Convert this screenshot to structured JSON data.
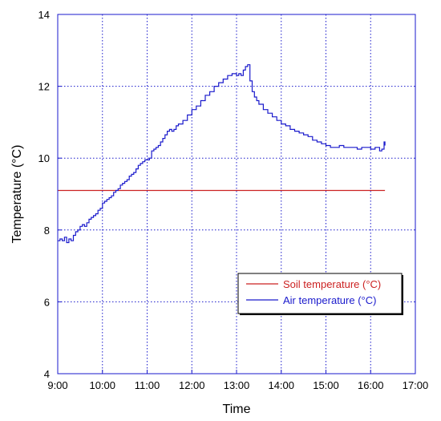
{
  "chart_data": {
    "type": "line",
    "title": "",
    "xlabel": "Time",
    "ylabel": "Temperature (°C)",
    "xlim": [
      9,
      17
    ],
    "ylim": [
      4,
      14
    ],
    "x_ticks": [
      {
        "value": 9,
        "label": "9:00"
      },
      {
        "value": 10,
        "label": "10:00"
      },
      {
        "value": 11,
        "label": "11:00"
      },
      {
        "value": 12,
        "label": "12:00"
      },
      {
        "value": 13,
        "label": "13:00"
      },
      {
        "value": 14,
        "label": "14:00"
      },
      {
        "value": 15,
        "label": "15:00"
      },
      {
        "value": 16,
        "label": "16:00"
      },
      {
        "value": 17,
        "label": "17:00"
      }
    ],
    "y_ticks": [
      {
        "value": 4,
        "label": "4"
      },
      {
        "value": 6,
        "label": "6"
      },
      {
        "value": 8,
        "label": "8"
      },
      {
        "value": 10,
        "label": "10"
      },
      {
        "value": 12,
        "label": "12"
      },
      {
        "value": 14,
        "label": "14"
      }
    ],
    "grid": true,
    "legend_position": "bottom-right",
    "series": [
      {
        "name": "Soil temperature (°C)",
        "color": "#cc2222",
        "x": [
          9.0,
          16.32
        ],
        "y": [
          9.1,
          9.1
        ]
      },
      {
        "name": "Air temperature (°C)",
        "color": "#1a1acc",
        "x": [
          9.0,
          9.05,
          9.1,
          9.15,
          9.2,
          9.25,
          9.3,
          9.35,
          9.4,
          9.45,
          9.5,
          9.55,
          9.6,
          9.65,
          9.7,
          9.75,
          9.8,
          9.85,
          9.9,
          9.95,
          10.0,
          10.05,
          10.1,
          10.15,
          10.2,
          10.25,
          10.3,
          10.35,
          10.4,
          10.45,
          10.5,
          10.55,
          10.6,
          10.65,
          10.7,
          10.75,
          10.8,
          10.85,
          10.9,
          10.95,
          11.0,
          11.05,
          11.1,
          11.15,
          11.2,
          11.25,
          11.3,
          11.35,
          11.4,
          11.45,
          11.5,
          11.55,
          11.6,
          11.65,
          11.7,
          11.8,
          11.9,
          12.0,
          12.1,
          12.2,
          12.3,
          12.4,
          12.5,
          12.6,
          12.7,
          12.8,
          12.9,
          13.0,
          13.05,
          13.1,
          13.15,
          13.2,
          13.25,
          13.3,
          13.35,
          13.4,
          13.45,
          13.5,
          13.6,
          13.7,
          13.8,
          13.9,
          14.0,
          14.1,
          14.2,
          14.3,
          14.4,
          14.5,
          14.6,
          14.7,
          14.8,
          14.9,
          15.0,
          15.1,
          15.2,
          15.3,
          15.4,
          15.5,
          15.6,
          15.7,
          15.8,
          15.9,
          16.0,
          16.1,
          16.2,
          16.25,
          16.3,
          16.32
        ],
        "y": [
          7.7,
          7.75,
          7.7,
          7.8,
          7.65,
          7.75,
          7.7,
          7.85,
          7.95,
          8.0,
          8.1,
          8.15,
          8.1,
          8.2,
          8.3,
          8.35,
          8.4,
          8.45,
          8.55,
          8.6,
          8.75,
          8.8,
          8.85,
          8.9,
          8.95,
          9.05,
          9.1,
          9.15,
          9.25,
          9.3,
          9.35,
          9.4,
          9.5,
          9.55,
          9.6,
          9.7,
          9.8,
          9.85,
          9.9,
          9.95,
          9.95,
          10.0,
          10.2,
          10.25,
          10.3,
          10.35,
          10.45,
          10.55,
          10.65,
          10.75,
          10.8,
          10.75,
          10.8,
          10.9,
          10.95,
          11.05,
          11.2,
          11.35,
          11.45,
          11.6,
          11.75,
          11.85,
          12.0,
          12.1,
          12.2,
          12.3,
          12.35,
          12.3,
          12.35,
          12.3,
          12.45,
          12.55,
          12.6,
          12.15,
          11.85,
          11.7,
          11.6,
          11.5,
          11.35,
          11.25,
          11.15,
          11.05,
          10.95,
          10.9,
          10.8,
          10.75,
          10.7,
          10.65,
          10.6,
          10.5,
          10.45,
          10.4,
          10.35,
          10.3,
          10.3,
          10.35,
          10.3,
          10.3,
          10.3,
          10.25,
          10.3,
          10.3,
          10.25,
          10.3,
          10.2,
          10.25,
          10.45,
          10.35
        ]
      }
    ]
  }
}
